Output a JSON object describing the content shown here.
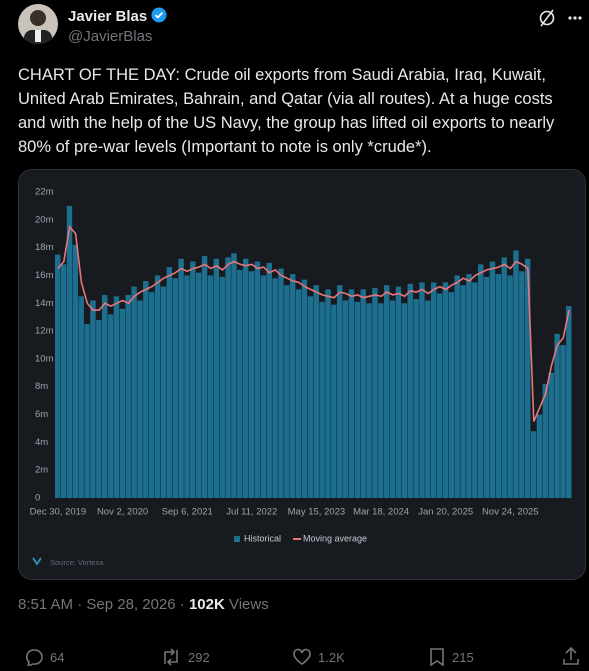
{
  "author": {
    "name": "Javier Blas",
    "handle": "@JavierBlas"
  },
  "text": "CHART OF THE DAY: Crude oil exports from Saudi Arabia, Iraq, Kuwait, United Arab Emirates, Bahrain, and Qatar (via all routes). At a huge costs and with the help of the US Navy, the group has lifted oil exports to nearly 80% of pre-war levels (Important to note is only *crude*).",
  "chart_data": {
    "type": "bar",
    "source": "Source: Vortexa",
    "categories": [
      "Dec 30, 2019",
      null,
      null,
      null,
      null,
      null,
      null,
      null,
      null,
      null,
      null,
      "Nov 2, 2020",
      null,
      null,
      null,
      null,
      null,
      null,
      null,
      null,
      null,
      null,
      "Sep 6, 2021",
      null,
      null,
      null,
      null,
      null,
      null,
      null,
      null,
      null,
      null,
      "Jul 11, 2022",
      null,
      null,
      null,
      null,
      null,
      null,
      null,
      null,
      null,
      null,
      "May 15, 2023",
      null,
      null,
      null,
      null,
      null,
      null,
      null,
      null,
      null,
      null,
      "Mar 18, 2024",
      null,
      null,
      null,
      null,
      null,
      null,
      null,
      null,
      null,
      null,
      "Jan 20, 2025",
      null,
      null,
      null,
      null,
      null,
      null,
      null,
      null,
      null,
      null,
      "Nov 24, 2025",
      null,
      null,
      null,
      null,
      null,
      null,
      null,
      null,
      null,
      null
    ],
    "series": [
      {
        "name": "Historical",
        "type": "bar",
        "color": "#1d6f8f",
        "values": [
          17.5,
          16.8,
          21,
          18.2,
          14.5,
          12.5,
          14.2,
          12.8,
          14.6,
          13.2,
          14.5,
          13.6,
          14.6,
          15.2,
          14.2,
          15.6,
          14.8,
          16,
          15.2,
          16.6,
          15.8,
          17.2,
          16,
          17,
          16.2,
          17.4,
          16,
          17.2,
          15.9,
          17.3,
          17.6,
          16.4,
          17.2,
          16.3,
          17,
          16,
          16.9,
          15.8,
          16.5,
          15.3,
          16.1,
          15,
          15.7,
          14.5,
          15.3,
          14.1,
          15,
          13.9,
          15.3,
          14.2,
          15,
          14.1,
          15,
          14,
          15.1,
          14,
          15.3,
          14.2,
          15.2,
          14,
          15.4,
          14.3,
          15.5,
          14.2,
          15.5,
          14.7,
          15.5,
          14.8,
          16,
          15.3,
          16.1,
          15.5,
          16.8,
          15.9,
          17,
          16.1,
          17.3,
          16,
          17.8,
          16.3,
          17.2,
          4.8,
          6,
          8.2,
          9,
          11.8,
          11,
          13.8
        ]
      },
      {
        "name": "Moving average",
        "type": "line",
        "color": "#e8767a",
        "values": [
          16.5,
          17,
          19.5,
          19,
          15.5,
          14,
          13.5,
          13.5,
          14,
          13.8,
          14,
          14.2,
          14,
          14.5,
          14.8,
          15,
          15.2,
          15.5,
          15.8,
          16,
          16.2,
          16.5,
          16.3,
          16.5,
          16.6,
          16.8,
          16.5,
          16.7,
          16.4,
          16.8,
          17,
          16.8,
          16.7,
          16.8,
          16.5,
          16.6,
          16.2,
          16.4,
          16,
          15.8,
          15.6,
          15.5,
          15.2,
          15,
          14.8,
          14.6,
          14.5,
          14.4,
          14.8,
          14.7,
          14.5,
          14.6,
          14.4,
          14.5,
          14.6,
          14.5,
          14.8,
          14.6,
          14.7,
          14.5,
          14.9,
          14.8,
          15,
          14.7,
          15,
          15.2,
          15,
          15.3,
          15.5,
          15.8,
          15.6,
          16,
          16.2,
          16.4,
          16.5,
          16.6,
          16.8,
          16.5,
          17,
          16.8,
          16.5,
          5.5,
          6.5,
          7.5,
          9.5,
          11,
          11.5,
          13.5
        ]
      }
    ],
    "ylim": [
      0,
      22
    ],
    "yticks": [
      0,
      {
        "value": 2,
        "label": "2m"
      },
      {
        "value": 4,
        "label": "4m"
      },
      {
        "value": 6,
        "label": "6m"
      },
      {
        "value": 8,
        "label": "8m"
      },
      {
        "value": 10,
        "label": "10m"
      },
      {
        "value": 12,
        "label": "12m"
      },
      {
        "value": 14,
        "label": "14m"
      },
      {
        "value": 16,
        "label": "16m"
      },
      {
        "value": 18,
        "label": "18m"
      },
      {
        "value": 20,
        "label": "20m"
      },
      {
        "value": 22,
        "label": "22m"
      }
    ],
    "grid": false,
    "legend": "bottom"
  },
  "meta": {
    "time": "8:51 AM · Sep 28, 2026 ·",
    "views": "102K",
    "views_label": "Views"
  },
  "actions": {
    "replies": "64",
    "reposts": "292",
    "likes": "1.2K",
    "bookmarks": "215"
  }
}
